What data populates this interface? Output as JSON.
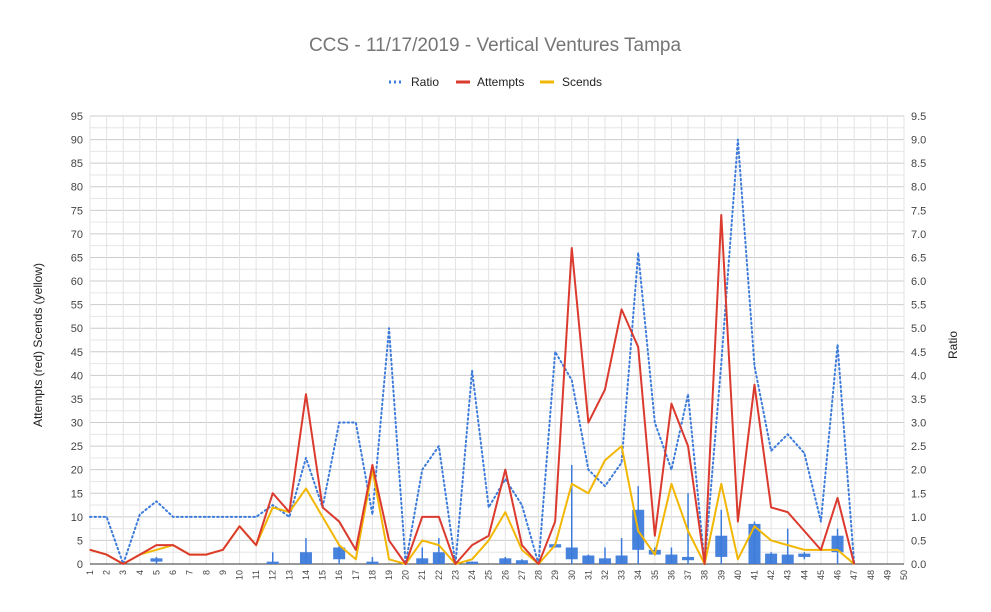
{
  "chart_data": {
    "type": "line",
    "title": "CCS - 11/17/2019 - Vertical Ventures Tampa",
    "ylabel_left": "Attempts (red) Scends (yellow)",
    "ylabel_right": "Ratio",
    "left_ylim": [
      0,
      95
    ],
    "left_ticks": [
      "0",
      "5",
      "10",
      "15",
      "20",
      "25",
      "30",
      "35",
      "40",
      "45",
      "50",
      "55",
      "60",
      "65",
      "70",
      "75",
      "80",
      "85",
      "90",
      "95"
    ],
    "right_ylim": [
      0,
      9.5
    ],
    "right_ticks": [
      "0.0",
      "0.5",
      "1.0",
      "1.5",
      "2.0",
      "2.5",
      "3.0",
      "3.5",
      "4.0",
      "4.5",
      "5.0",
      "5.5",
      "6.0",
      "6.5",
      "7.0",
      "7.5",
      "8.0",
      "8.5",
      "9.0",
      "9.5"
    ],
    "x": [
      "1",
      "2",
      "3",
      "4",
      "5",
      "6",
      "7",
      "8",
      "9",
      "10",
      "11",
      "12",
      "13",
      "14",
      "15",
      "16",
      "17",
      "18",
      "19",
      "20",
      "21",
      "22",
      "23",
      "24",
      "25",
      "26",
      "27",
      "28",
      "29",
      "30",
      "31",
      "32",
      "33",
      "34",
      "35",
      "36",
      "37",
      "38",
      "39",
      "40",
      "41",
      "42",
      "43",
      "44",
      "45",
      "46",
      "47",
      "48",
      "49",
      "50"
    ],
    "grid": true,
    "legend_position": "top-center",
    "legend": [
      {
        "name": "Ratio",
        "color": "#3d7bdb",
        "style": "dotted"
      },
      {
        "name": "Attempts",
        "color": "#db3a2e",
        "style": "solid"
      },
      {
        "name": "Scends",
        "color": "#f2b705",
        "style": "solid"
      }
    ],
    "series": [
      {
        "name": "Ratio",
        "axis": "right",
        "color": "#3d7bdb",
        "values": [
          1.0,
          1.0,
          0.0,
          1.05,
          1.33,
          1.0,
          1.0,
          1.0,
          1.0,
          1.0,
          1.0,
          1.25,
          1.0,
          2.25,
          1.2,
          3.0,
          3.0,
          1.05,
          5.0,
          0.0,
          2.0,
          2.5,
          0.0,
          4.1,
          1.2,
          1.8,
          1.25,
          0.0,
          4.5,
          3.9,
          2.0,
          1.65,
          2.15,
          6.6,
          3.0,
          2.0,
          3.6,
          0.0,
          4.25,
          9.0,
          4.2,
          2.4,
          2.75,
          2.35,
          0.9,
          4.65,
          0.0,
          null,
          null,
          null
        ]
      },
      {
        "name": "Attempts",
        "axis": "left",
        "color": "#db3a2e",
        "values": [
          3,
          2,
          0,
          2,
          4,
          4,
          2,
          2,
          3,
          8,
          4,
          15,
          11,
          36,
          12,
          9,
          3,
          21,
          5,
          0,
          10,
          10,
          0,
          4,
          6,
          20,
          4,
          0,
          9,
          67,
          30,
          37,
          54,
          46,
          6,
          34,
          25,
          0,
          74,
          9,
          38,
          12,
          11,
          7,
          3,
          14,
          0,
          null,
          null,
          null
        ]
      },
      {
        "name": "Scends",
        "axis": "left",
        "color": "#f2b705",
        "values": [
          3,
          2,
          0,
          2,
          3,
          4,
          2,
          2,
          3,
          8,
          4,
          12,
          11,
          16,
          10,
          4,
          1,
          20,
          1,
          0,
          5,
          4,
          0,
          1,
          5,
          11,
          3,
          0,
          4,
          17,
          15,
          22,
          25,
          7,
          2,
          17,
          7,
          0,
          17,
          1,
          8,
          5,
          4,
          3,
          3,
          3,
          0,
          null,
          null,
          null
        ]
      }
    ],
    "candles": {
      "color": "#3d7bdb",
      "note": "blue box marks on ratio axis",
      "items": [
        {
          "x": "5",
          "low": 0.0,
          "high": 0.15,
          "open": 0.05,
          "close": 0.12
        },
        {
          "x": "12",
          "low": 0.0,
          "high": 0.25,
          "open": 0.0,
          "close": 0.05
        },
        {
          "x": "14",
          "low": 0.0,
          "high": 0.55,
          "open": 0.0,
          "close": 0.25
        },
        {
          "x": "16",
          "low": 0.0,
          "high": 0.4,
          "open": 0.1,
          "close": 0.35
        },
        {
          "x": "18",
          "low": 0.0,
          "high": 0.15,
          "open": 0.0,
          "close": 0.05
        },
        {
          "x": "21",
          "low": 0.0,
          "high": 0.35,
          "open": 0.0,
          "close": 0.12
        },
        {
          "x": "22",
          "low": 0.0,
          "high": 0.55,
          "open": 0.0,
          "close": 0.25
        },
        {
          "x": "24",
          "low": 0.0,
          "high": 0.05,
          "open": 0.0,
          "close": 0.05
        },
        {
          "x": "26",
          "low": 0.0,
          "high": 0.15,
          "open": 0.0,
          "close": 0.12
        },
        {
          "x": "27",
          "low": 0.0,
          "high": 0.1,
          "open": 0.0,
          "close": 0.08
        },
        {
          "x": "29",
          "low": 0.35,
          "high": 0.45,
          "open": 0.35,
          "close": 0.42
        },
        {
          "x": "30",
          "low": 0.0,
          "high": 2.1,
          "open": 0.1,
          "close": 0.35
        },
        {
          "x": "31",
          "low": 0.0,
          "high": 0.2,
          "open": 0.0,
          "close": 0.18
        },
        {
          "x": "32",
          "low": 0.0,
          "high": 0.35,
          "open": 0.0,
          "close": 0.12
        },
        {
          "x": "33",
          "low": 0.0,
          "high": 0.55,
          "open": 0.0,
          "close": 0.18
        },
        {
          "x": "34",
          "low": 0.0,
          "high": 1.65,
          "open": 0.3,
          "close": 1.15
        },
        {
          "x": "35",
          "low": 0.2,
          "high": 0.35,
          "open": 0.2,
          "close": 0.3
        },
        {
          "x": "36",
          "low": 0.0,
          "high": 0.35,
          "open": 0.0,
          "close": 0.2
        },
        {
          "x": "37",
          "low": 0.0,
          "high": 1.5,
          "open": 0.08,
          "close": 0.15
        },
        {
          "x": "39",
          "low": 0.0,
          "high": 1.15,
          "open": 0.15,
          "close": 0.6
        },
        {
          "x": "41",
          "low": 0.0,
          "high": 0.9,
          "open": 0.0,
          "close": 0.85
        },
        {
          "x": "42",
          "low": 0.0,
          "high": 0.25,
          "open": 0.0,
          "close": 0.22
        },
        {
          "x": "43",
          "low": 0.0,
          "high": 0.75,
          "open": 0.0,
          "close": 0.2
        },
        {
          "x": "44",
          "low": 0.1,
          "high": 0.25,
          "open": 0.15,
          "close": 0.22
        },
        {
          "x": "46",
          "low": 0.0,
          "high": 0.75,
          "open": 0.25,
          "close": 0.6
        }
      ]
    }
  }
}
